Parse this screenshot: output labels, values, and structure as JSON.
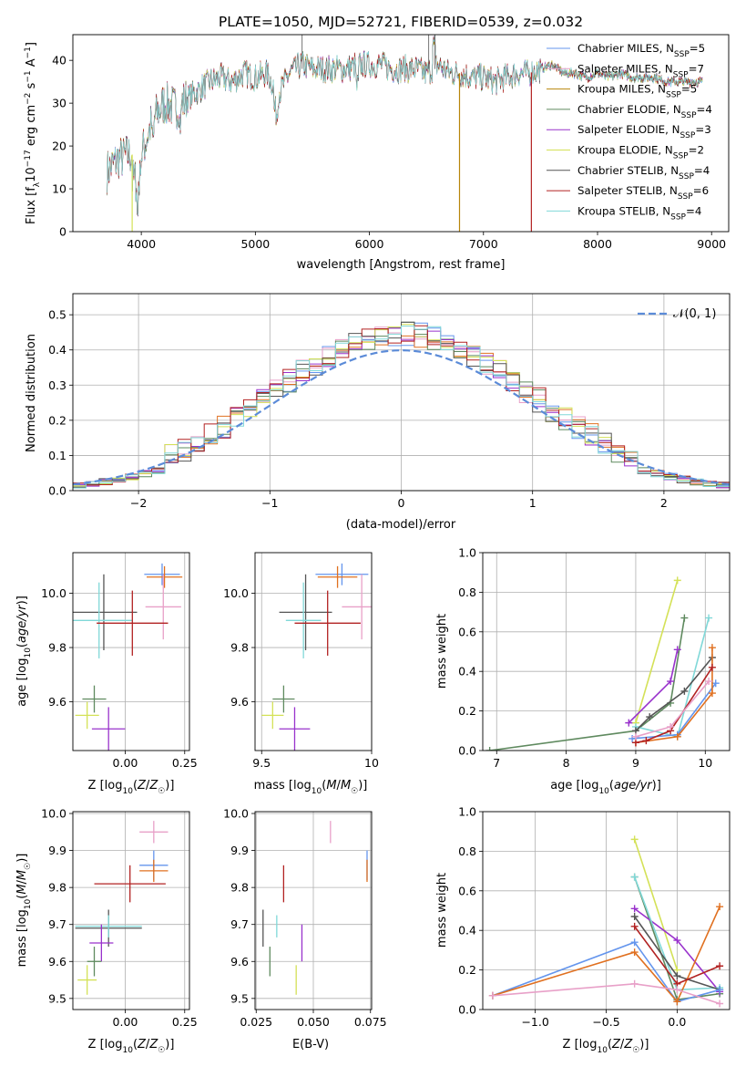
{
  "chart_data": [
    {
      "id": "spectrum",
      "type": "line",
      "title": "PLATE=1050, MJD=52721, FIBERID=0539, z=0.032",
      "xlabel": "wavelength [Angstrom, rest frame]",
      "ylabel": "Flux [f",
      "ylabel_parts": [
        "Flux [f",
        "λ",
        "10",
        "−17",
        " erg cm",
        "−2",
        " s",
        "−1",
        " A",
        "−1",
        "]"
      ],
      "xlim": [
        3400,
        9150
      ],
      "ylim": [
        0,
        46
      ],
      "xticks": [
        4000,
        5000,
        6000,
        7000,
        8000,
        9000
      ],
      "yticks": [
        0,
        10,
        20,
        30,
        40
      ],
      "x_range_data": [
        3700,
        8920
      ],
      "legend_position": "upper right",
      "series": [
        {
          "name": "Chabrier MILES, N",
          "sub": "SSP",
          "suffix": "=5",
          "color": "#6495ed"
        },
        {
          "name": "Salpeter MILES, N",
          "sub": "SSP",
          "suffix": "=7",
          "color": "#e8a0c8"
        },
        {
          "name": "Kroupa MILES, N",
          "sub": "SSP",
          "suffix": "=5",
          "color": "#b8860b"
        },
        {
          "name": "Chabrier ELODIE, N",
          "sub": "SSP",
          "suffix": "=4",
          "color": "#5f8a5f"
        },
        {
          "name": "Salpeter ELODIE, N",
          "sub": "SSP",
          "suffix": "=3",
          "color": "#9932cc"
        },
        {
          "name": "Kroupa ELODIE, N",
          "sub": "SSP",
          "suffix": "=2",
          "color": "#d4e157"
        },
        {
          "name": "Chabrier STELIB, N",
          "sub": "SSP",
          "suffix": "=4",
          "color": "#555555"
        },
        {
          "name": "Salpeter STELIB, N",
          "sub": "SSP",
          "suffix": "=6",
          "color": "#b22222"
        },
        {
          "name": "Kroupa STELIB, N",
          "sub": "SSP",
          "suffix": "=4",
          "color": "#80d8d8"
        }
      ],
      "continuum": [
        [
          3700,
          14
        ],
        [
          3800,
          17
        ],
        [
          3900,
          18
        ],
        [
          4000,
          18
        ],
        [
          4100,
          26
        ],
        [
          4200,
          30
        ],
        [
          4300,
          29
        ],
        [
          4400,
          31
        ],
        [
          4500,
          33
        ],
        [
          4600,
          35
        ],
        [
          4700,
          36
        ],
        [
          4800,
          35
        ],
        [
          4900,
          37
        ],
        [
          5000,
          36
        ],
        [
          5100,
          37
        ],
        [
          5200,
          32
        ],
        [
          5300,
          37
        ],
        [
          5400,
          39
        ],
        [
          5500,
          38
        ],
        [
          5600,
          38
        ],
        [
          5700,
          38
        ],
        [
          5800,
          38
        ],
        [
          5900,
          39
        ],
        [
          6000,
          39
        ],
        [
          6100,
          39
        ],
        [
          6200,
          38
        ],
        [
          6300,
          38
        ],
        [
          6400,
          38
        ],
        [
          6500,
          37
        ],
        [
          6600,
          39
        ],
        [
          6700,
          37
        ],
        [
          6800,
          37
        ],
        [
          6900,
          36
        ],
        [
          7000,
          36
        ],
        [
          7100,
          35
        ],
        [
          7200,
          36
        ],
        [
          7300,
          37
        ],
        [
          7400,
          37
        ],
        [
          7500,
          38
        ],
        [
          7600,
          39
        ],
        [
          7700,
          37
        ],
        [
          7800,
          37
        ],
        [
          7900,
          36
        ],
        [
          8000,
          37
        ],
        [
          8100,
          36
        ],
        [
          8200,
          37
        ],
        [
          8300,
          36
        ],
        [
          8400,
          36
        ],
        [
          8500,
          36
        ],
        [
          8600,
          35
        ],
        [
          8700,
          35
        ],
        [
          8800,
          35
        ],
        [
          8920,
          35
        ]
      ]
    },
    {
      "id": "residuals",
      "type": "histogram",
      "xlabel": "(data-model)/error",
      "ylabel": "Normed distribution",
      "xlim": [
        -2.5,
        2.5
      ],
      "ylim": [
        0,
        0.56
      ],
      "xticks": [
        -2,
        -1,
        0,
        1,
        2
      ],
      "yticks": [
        0.0,
        0.1,
        0.2,
        0.3,
        0.4,
        0.5
      ],
      "grid": true,
      "legend": "𝒩(0, 1)",
      "legend_position": "upper right",
      "gaussian": {
        "mu": 0,
        "sigma": 1,
        "color": "#5b8bd8"
      },
      "bin_width": 0.1,
      "hist_colors": [
        "#6495ed",
        "#e8a0c8",
        "#e07020",
        "#5f8a5f",
        "#9932cc",
        "#d4e157",
        "#555555",
        "#b22222",
        "#80d8d8"
      ]
    },
    {
      "id": "age-vs-Z",
      "type": "errorbar",
      "xlabel": "Z [log",
      "ylabel": "age  [log",
      "xlim": [
        -0.22,
        0.27
      ],
      "ylim": [
        9.42,
        10.15
      ],
      "xticks": [
        -0.25,
        0.0,
        0.25
      ],
      "xtick_labels": [
        "",
        "0.00",
        "0.25"
      ],
      "yticks": [
        9.6,
        9.8,
        10.0
      ],
      "points": [
        {
          "x": 0.155,
          "y": 10.07,
          "xerr": 0.075,
          "yerr": 0.04,
          "color": "#6495ed"
        },
        {
          "x": 0.165,
          "y": 10.06,
          "xerr": 0.075,
          "yerr": 0.04,
          "color": "#e07020"
        },
        {
          "x": 0.16,
          "y": 9.95,
          "xerr": 0.075,
          "yerr": 0.12,
          "color": "#e8a0c8"
        },
        {
          "x": -0.09,
          "y": 9.93,
          "xerr": 0.14,
          "yerr": 0.14,
          "color": "#555555"
        },
        {
          "x": -0.11,
          "y": 9.9,
          "xerr": 0.14,
          "yerr": 0.14,
          "color": "#80d8d8"
        },
        {
          "x": 0.03,
          "y": 9.89,
          "xerr": 0.15,
          "yerr": 0.12,
          "color": "#b22222"
        },
        {
          "x": -0.13,
          "y": 9.61,
          "xerr": 0.05,
          "yerr": 0.05,
          "color": "#5f8a5f"
        },
        {
          "x": -0.07,
          "y": 9.5,
          "xerr": 0.07,
          "yerr": 0.08,
          "color": "#9932cc"
        },
        {
          "x": -0.16,
          "y": 9.55,
          "xerr": 0.05,
          "yerr": 0.05,
          "color": "#d4e157"
        }
      ]
    },
    {
      "id": "age-vs-mass",
      "type": "errorbar",
      "xlabel": "mass [log",
      "ylabel": "",
      "xlim": [
        9.47,
        10.0
      ],
      "ylim": [
        9.42,
        10.15
      ],
      "xticks": [
        9.5,
        10.0
      ],
      "yticks": [
        9.6,
        9.8,
        10.0
      ],
      "points": [
        {
          "x": 9.865,
          "y": 10.07,
          "xerr": 0.12,
          "yerr": 0.04,
          "color": "#6495ed"
        },
        {
          "x": 9.845,
          "y": 10.06,
          "xerr": 0.09,
          "yerr": 0.04,
          "color": "#e07020"
        },
        {
          "x": 9.955,
          "y": 9.95,
          "xerr": 0.09,
          "yerr": 0.12,
          "color": "#e8a0c8"
        },
        {
          "x": 9.7,
          "y": 9.93,
          "xerr": 0.12,
          "yerr": 0.14,
          "color": "#555555"
        },
        {
          "x": 9.69,
          "y": 9.9,
          "xerr": 0.08,
          "yerr": 0.14,
          "color": "#80d8d8"
        },
        {
          "x": 9.8,
          "y": 9.89,
          "xerr": 0.15,
          "yerr": 0.12,
          "color": "#b22222"
        },
        {
          "x": 9.6,
          "y": 9.61,
          "xerr": 0.05,
          "yerr": 0.05,
          "color": "#5f8a5f"
        },
        {
          "x": 9.65,
          "y": 9.5,
          "xerr": 0.07,
          "yerr": 0.08,
          "color": "#9932cc"
        },
        {
          "x": 9.55,
          "y": 9.55,
          "xerr": 0.05,
          "yerr": 0.05,
          "color": "#d4e157"
        }
      ]
    },
    {
      "id": "massweight-vs-age",
      "type": "line",
      "xlabel": "age  [log",
      "ylabel": "mass weight",
      "xlim": [
        6.8,
        10.35
      ],
      "ylim": [
        0,
        1.0
      ],
      "xticks": [
        7,
        8,
        9,
        10
      ],
      "yticks": [
        0.0,
        0.2,
        0.4,
        0.6,
        0.8,
        1.0
      ],
      "grid": true,
      "series": [
        {
          "color": "#d4e157",
          "points": [
            [
              9.0,
              0.14
            ],
            [
              9.6,
              0.86
            ]
          ]
        },
        {
          "color": "#5f8a5f",
          "points": [
            [
              6.9,
              0.0
            ],
            [
              9.0,
              0.1
            ],
            [
              9.5,
              0.24
            ],
            [
              9.7,
              0.67
            ]
          ]
        },
        {
          "color": "#9932cc",
          "points": [
            [
              8.9,
              0.14
            ],
            [
              9.5,
              0.35
            ],
            [
              9.6,
              0.51
            ]
          ]
        },
        {
          "color": "#80d8d8",
          "points": [
            [
              9.0,
              0.12
            ],
            [
              9.6,
              0.07
            ],
            [
              10.05,
              0.67
            ]
          ]
        },
        {
          "color": "#555555",
          "points": [
            [
              9.0,
              0.1
            ],
            [
              9.2,
              0.17
            ],
            [
              9.7,
              0.3
            ],
            [
              10.1,
              0.47
            ]
          ]
        },
        {
          "color": "#6495ed",
          "points": [
            [
              8.95,
              0.06
            ],
            [
              9.6,
              0.08
            ],
            [
              10.15,
              0.34
            ]
          ]
        },
        {
          "color": "#e07020",
          "points": [
            [
              9.0,
              0.04
            ],
            [
              9.6,
              0.07
            ],
            [
              10.1,
              0.29
            ],
            [
              10.1,
              0.52
            ]
          ]
        },
        {
          "color": "#b22222",
          "points": [
            [
              9.0,
              0.04
            ],
            [
              9.15,
              0.05
            ],
            [
              9.5,
              0.1
            ],
            [
              10.1,
              0.42
            ]
          ]
        },
        {
          "color": "#e8a0c8",
          "points": [
            [
              9.0,
              0.07
            ],
            [
              9.5,
              0.12
            ],
            [
              10.05,
              0.35
            ]
          ]
        }
      ]
    },
    {
      "id": "mass-vs-Z",
      "type": "errorbar",
      "xlabel": "Z [log",
      "ylabel": "mass [log",
      "xlim": [
        -0.22,
        0.27
      ],
      "ylim": [
        9.47,
        10.005
      ],
      "xticks": [
        -0.25,
        0.0,
        0.25
      ],
      "xtick_labels": [
        "",
        "0.00",
        "0.25"
      ],
      "yticks": [
        9.5,
        9.6,
        9.7,
        9.8,
        9.9,
        10.0
      ],
      "points": [
        {
          "x": 0.12,
          "y": 9.95,
          "xerr": 0.06,
          "yerr": 0.03,
          "color": "#e8a0c8"
        },
        {
          "x": 0.12,
          "y": 9.86,
          "xerr": 0.06,
          "yerr": 0.04,
          "color": "#6495ed"
        },
        {
          "x": 0.12,
          "y": 9.845,
          "xerr": 0.06,
          "yerr": 0.03,
          "color": "#e07020"
        },
        {
          "x": 0.02,
          "y": 9.81,
          "xerr": 0.15,
          "yerr": 0.05,
          "color": "#b22222"
        },
        {
          "x": -0.07,
          "y": 9.69,
          "xerr": 0.14,
          "yerr": 0.05,
          "color": "#555555"
        },
        {
          "x": -0.07,
          "y": 9.695,
          "xerr": 0.14,
          "yerr": 0.03,
          "color": "#80d8d8"
        },
        {
          "x": -0.1,
          "y": 9.65,
          "xerr": 0.05,
          "yerr": 0.05,
          "color": "#9932cc"
        },
        {
          "x": -0.13,
          "y": 9.6,
          "xerr": 0.03,
          "yerr": 0.04,
          "color": "#5f8a5f"
        },
        {
          "x": -0.16,
          "y": 9.55,
          "xerr": 0.04,
          "yerr": 0.04,
          "color": "#d4e157"
        }
      ]
    },
    {
      "id": "mass-vs-ebv",
      "type": "errorbar",
      "xlabel": "E(B-V)",
      "ylabel": "",
      "xlim": [
        0.0245,
        0.0755
      ],
      "ylim": [
        9.47,
        10.005
      ],
      "xticks": [
        0.025,
        0.05,
        0.075
      ],
      "xtick_labels": [
        "0.025",
        "0.050",
        "0.075"
      ],
      "yticks": [
        9.5,
        9.6,
        9.7,
        9.8,
        9.9,
        10.0
      ],
      "points": [
        {
          "x": 0.0575,
          "y": 9.95,
          "xerr": 0,
          "yerr": 0.03,
          "color": "#e8a0c8"
        },
        {
          "x": 0.0735,
          "y": 9.86,
          "xerr": 0,
          "yerr": 0.04,
          "color": "#6495ed"
        },
        {
          "x": 0.0735,
          "y": 9.845,
          "xerr": 0,
          "yerr": 0.03,
          "color": "#e07020"
        },
        {
          "x": 0.037,
          "y": 9.81,
          "xerr": 0,
          "yerr": 0.05,
          "color": "#b22222"
        },
        {
          "x": 0.028,
          "y": 9.69,
          "xerr": 0,
          "yerr": 0.05,
          "color": "#555555"
        },
        {
          "x": 0.034,
          "y": 9.695,
          "xerr": 0,
          "yerr": 0.03,
          "color": "#80d8d8"
        },
        {
          "x": 0.045,
          "y": 9.65,
          "xerr": 0,
          "yerr": 0.05,
          "color": "#9932cc"
        },
        {
          "x": 0.031,
          "y": 9.6,
          "xerr": 0,
          "yerr": 0.04,
          "color": "#5f8a5f"
        },
        {
          "x": 0.0425,
          "y": 9.55,
          "xerr": 0,
          "yerr": 0.04,
          "color": "#d4e157"
        }
      ]
    },
    {
      "id": "massweight-vs-Z",
      "type": "line",
      "xlabel": "Z [log",
      "ylabel": "mass weight",
      "xlim": [
        -1.37,
        0.37
      ],
      "ylim": [
        0,
        1.0
      ],
      "xticks": [
        -1.0,
        -0.5,
        0.0
      ],
      "xtick_labels": [
        "−1.0",
        "−0.5",
        "0.0"
      ],
      "yticks": [
        0.0,
        0.2,
        0.4,
        0.6,
        0.8,
        1.0
      ],
      "grid": true,
      "series": [
        {
          "color": "#d4e157",
          "points": [
            [
              -0.3,
              0.86
            ],
            [
              0.0,
              0.2
            ]
          ]
        },
        {
          "color": "#5f8a5f",
          "points": [
            [
              -0.3,
              0.67
            ],
            [
              0.0,
              0.05
            ],
            [
              0.3,
              0.08
            ]
          ]
        },
        {
          "color": "#9932cc",
          "points": [
            [
              -0.3,
              0.51
            ],
            [
              0.0,
              0.35
            ],
            [
              0.3,
              0.09
            ]
          ]
        },
        {
          "color": "#80d8d8",
          "points": [
            [
              -0.3,
              0.67
            ],
            [
              0.0,
              0.1
            ],
            [
              0.3,
              0.11
            ]
          ]
        },
        {
          "color": "#555555",
          "points": [
            [
              -0.3,
              0.47
            ],
            [
              0.0,
              0.17
            ],
            [
              0.3,
              0.1
            ]
          ]
        },
        {
          "color": "#6495ed",
          "points": [
            [
              -1.3,
              0.07
            ],
            [
              -0.3,
              0.34
            ],
            [
              0.0,
              0.04
            ],
            [
              0.3,
              0.1
            ]
          ]
        },
        {
          "color": "#e07020",
          "points": [
            [
              -1.3,
              0.07
            ],
            [
              -0.3,
              0.29
            ],
            [
              0.0,
              0.04
            ],
            [
              0.3,
              0.52
            ]
          ]
        },
        {
          "color": "#b22222",
          "points": [
            [
              -0.3,
              0.42
            ],
            [
              0.0,
              0.13
            ],
            [
              0.3,
              0.22
            ]
          ]
        },
        {
          "color": "#e8a0c8",
          "points": [
            [
              -1.3,
              0.07
            ],
            [
              -0.3,
              0.13
            ],
            [
              0.0,
              0.1
            ],
            [
              0.3,
              0.03
            ]
          ]
        }
      ]
    }
  ]
}
